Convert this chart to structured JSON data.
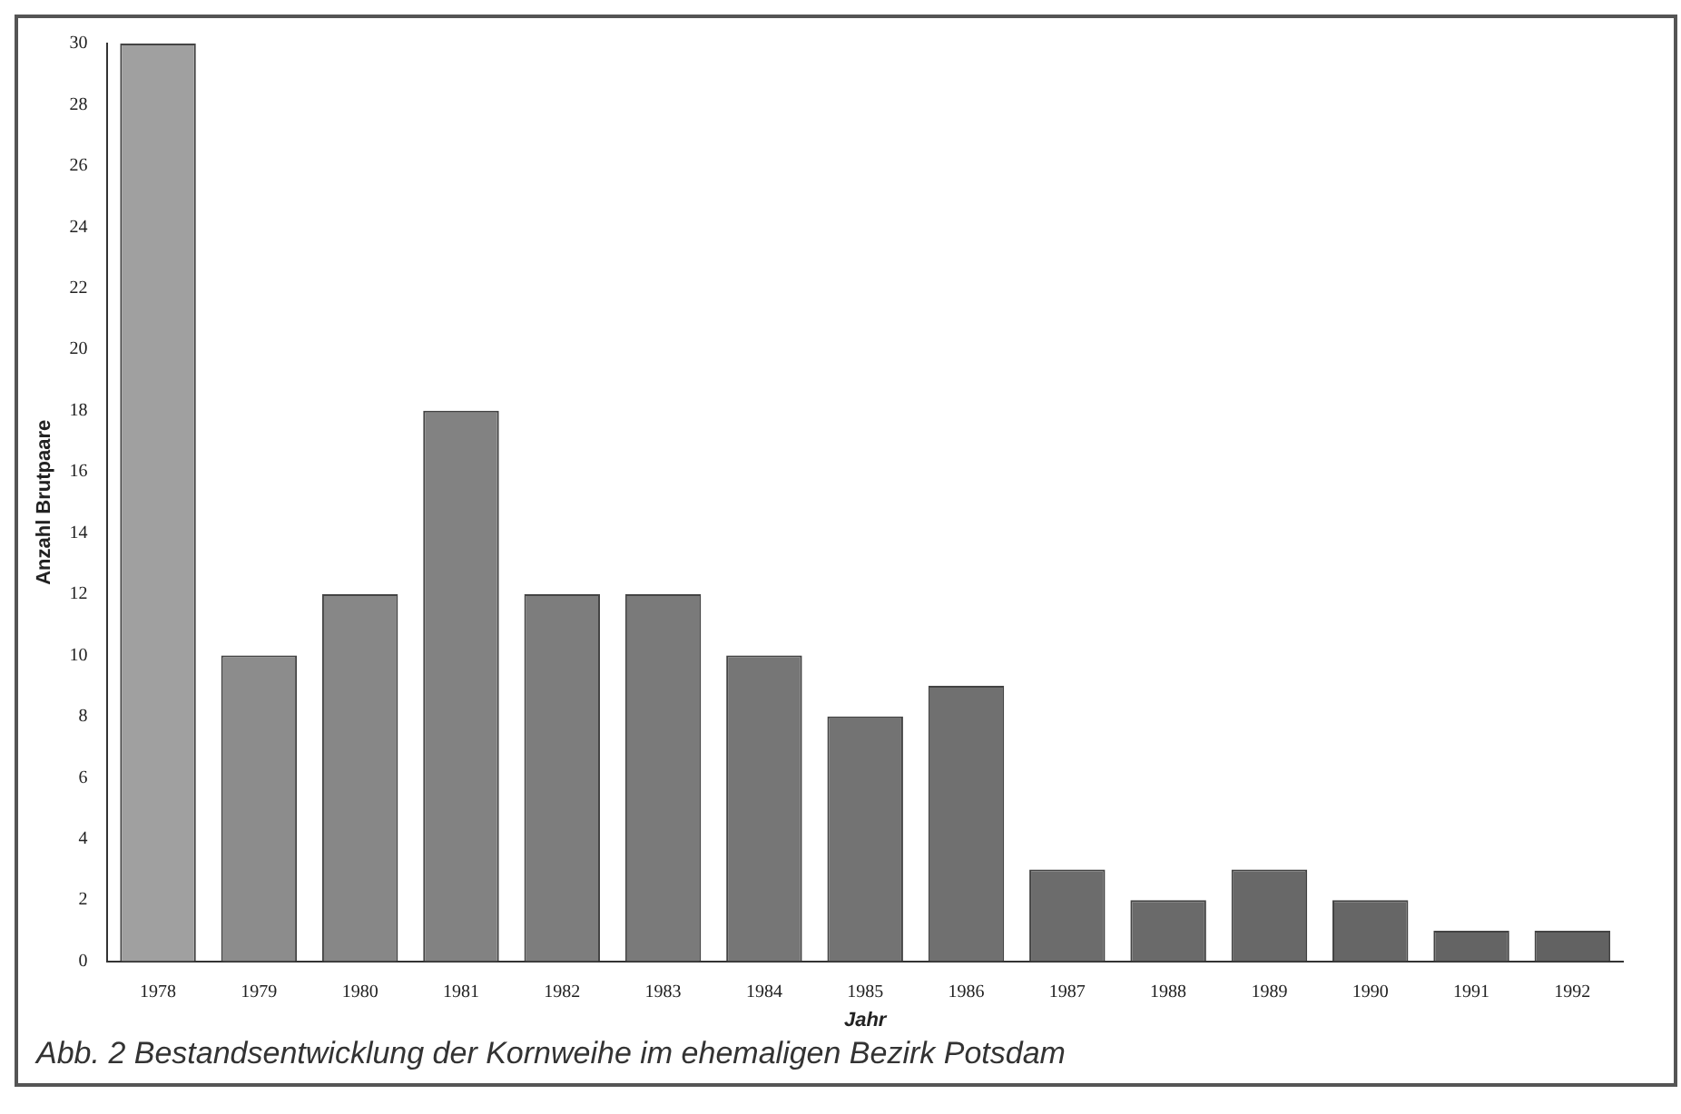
{
  "chart_data": {
    "type": "bar",
    "xlabel": "Jahr",
    "ylabel": "Anzahl Brutpaare",
    "categories": [
      "1978",
      "1979",
      "1980",
      "1981",
      "1982",
      "1983",
      "1984",
      "1985",
      "1986",
      "1987",
      "1988",
      "1989",
      "1990",
      "1991",
      "1992"
    ],
    "values": [
      30,
      10,
      12,
      18,
      12,
      12,
      10,
      8,
      9,
      3,
      2,
      3,
      2,
      1,
      1
    ],
    "colors": [
      "#a0a0a0",
      "#8c8c8c",
      "#878787",
      "#828282",
      "#7d7d7d",
      "#7a7a7a",
      "#767676",
      "#737373",
      "#707070",
      "#6c6c6c",
      "#6a6a6a",
      "#686868",
      "#666666",
      "#646464",
      "#626262"
    ],
    "ylim": [
      0,
      30
    ],
    "yticks": [
      0,
      2,
      4,
      6,
      8,
      10,
      12,
      14,
      16,
      18,
      20,
      22,
      24,
      26,
      28,
      30
    ],
    "grid": false,
    "legend": false,
    "annotations": [
      "Abb. 2 Bestandsentwicklung der Kornweihe im ehemaligen Bezirk Potsdam"
    ]
  }
}
